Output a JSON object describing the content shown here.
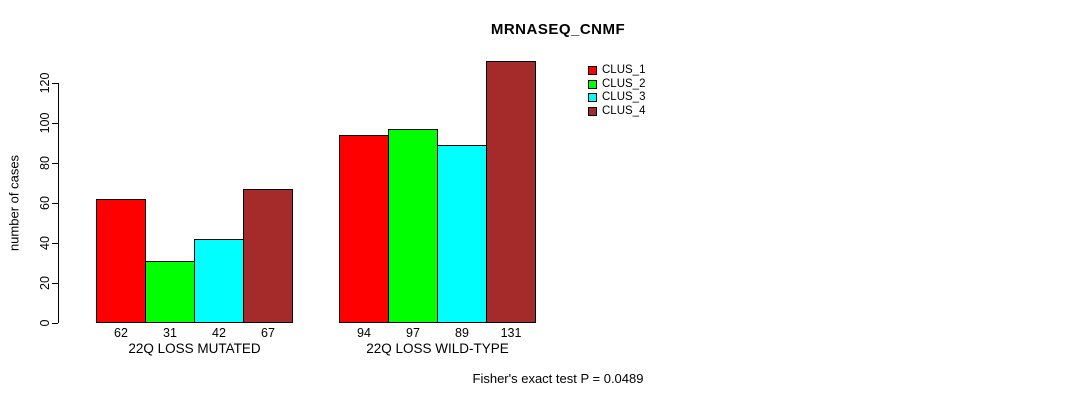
{
  "chart_data": {
    "type": "bar",
    "title": "MRNASEQ_CNMF",
    "ylabel": "number of cases",
    "xlabel": "",
    "categories": [
      "22Q LOSS MUTATED",
      "22Q LOSS WILD-TYPE"
    ],
    "series": [
      {
        "name": "CLUS_1",
        "color": "#ff0000",
        "values": [
          62,
          94
        ]
      },
      {
        "name": "CLUS_2",
        "color": "#00ff00",
        "values": [
          31,
          97
        ]
      },
      {
        "name": "CLUS_3",
        "color": "#00ffff",
        "values": [
          42,
          89
        ]
      },
      {
        "name": "CLUS_4",
        "color": "#a52a2a",
        "values": [
          67,
          131
        ]
      }
    ],
    "yticks": [
      0,
      20,
      40,
      60,
      80,
      100,
      120
    ],
    "ylim": [
      0,
      131
    ],
    "bar_value_labels": true,
    "grid": false,
    "legend_position": "top-right",
    "axis_color": "#000000",
    "text_color": "#000000",
    "background": "#ffffff",
    "footer": "Fisher's exact test P = 0.0489"
  }
}
